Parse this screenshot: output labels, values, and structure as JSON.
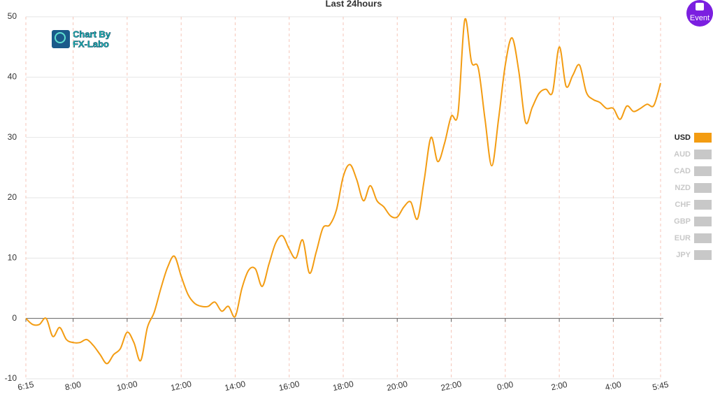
{
  "chart_data": {
    "type": "line",
    "title": "Last 24hours",
    "categories": [
      "6:15",
      null,
      null,
      null,
      null,
      null,
      null,
      "8:00",
      null,
      null,
      null,
      null,
      null,
      null,
      null,
      "10:00",
      null,
      null,
      null,
      null,
      null,
      null,
      null,
      "12:00",
      null,
      null,
      null,
      null,
      null,
      null,
      null,
      "14:00",
      null,
      null,
      null,
      null,
      null,
      null,
      null,
      "16:00",
      null,
      null,
      null,
      null,
      null,
      null,
      null,
      "18:00",
      null,
      null,
      null,
      null,
      null,
      null,
      null,
      "20:00",
      null,
      null,
      null,
      null,
      null,
      null,
      null,
      "22:00",
      null,
      null,
      null,
      null,
      null,
      null,
      null,
      "0:00",
      null,
      null,
      null,
      null,
      null,
      null,
      null,
      "2:00",
      null,
      null,
      null,
      null,
      null,
      null,
      null,
      "4:00",
      null,
      null,
      null,
      null,
      null,
      null,
      "5:45"
    ],
    "series": [
      {
        "name": "USD",
        "color": "#f39c12",
        "values": [
          0,
          -1,
          -1,
          0,
          -3,
          -1.5,
          -3.5,
          -4,
          -4,
          -3.5,
          -4.5,
          -6,
          -7.5,
          -6,
          -5,
          -2.3,
          -4,
          -7,
          -1.5,
          1,
          5,
          8.5,
          10.3,
          7,
          4,
          2.5,
          2,
          2,
          2.7,
          1.2,
          2,
          0.3,
          5,
          8,
          8.2,
          5.3,
          9,
          12.5,
          13.7,
          11.5,
          10,
          13,
          7.5,
          11,
          15,
          15.5,
          18,
          23.5,
          25.5,
          23,
          19.5,
          22,
          19.5,
          18.5,
          17,
          16.8,
          18.5,
          19.3,
          16.5,
          23,
          30,
          26,
          29,
          33.5,
          34,
          49.5,
          42.5,
          41.5,
          33,
          25.3,
          33,
          42,
          46.5,
          41,
          32.5,
          35,
          37.3,
          38,
          37.5,
          45,
          38.5,
          40.3,
          42,
          37.5,
          36.3,
          35.8,
          34.8,
          34.8,
          33,
          35.2,
          34.3,
          34.8,
          35.5,
          35.3,
          39
        ]
      }
    ],
    "hidden_series": [
      {
        "name": "AUD"
      },
      {
        "name": "CAD"
      },
      {
        "name": "NZD"
      },
      {
        "name": "CHF"
      },
      {
        "name": "GBP"
      },
      {
        "name": "EUR"
      },
      {
        "name": "JPY"
      }
    ],
    "hidden_color": "#c8c8c8",
    "ylim": [
      -10,
      50
    ],
    "yticks": [
      -10,
      0,
      10,
      20,
      30,
      40,
      50
    ],
    "grid": true,
    "legend": "right"
  },
  "logo": {
    "line1": "Chart By",
    "line2": "FX-Labo"
  },
  "event_button": "Event"
}
